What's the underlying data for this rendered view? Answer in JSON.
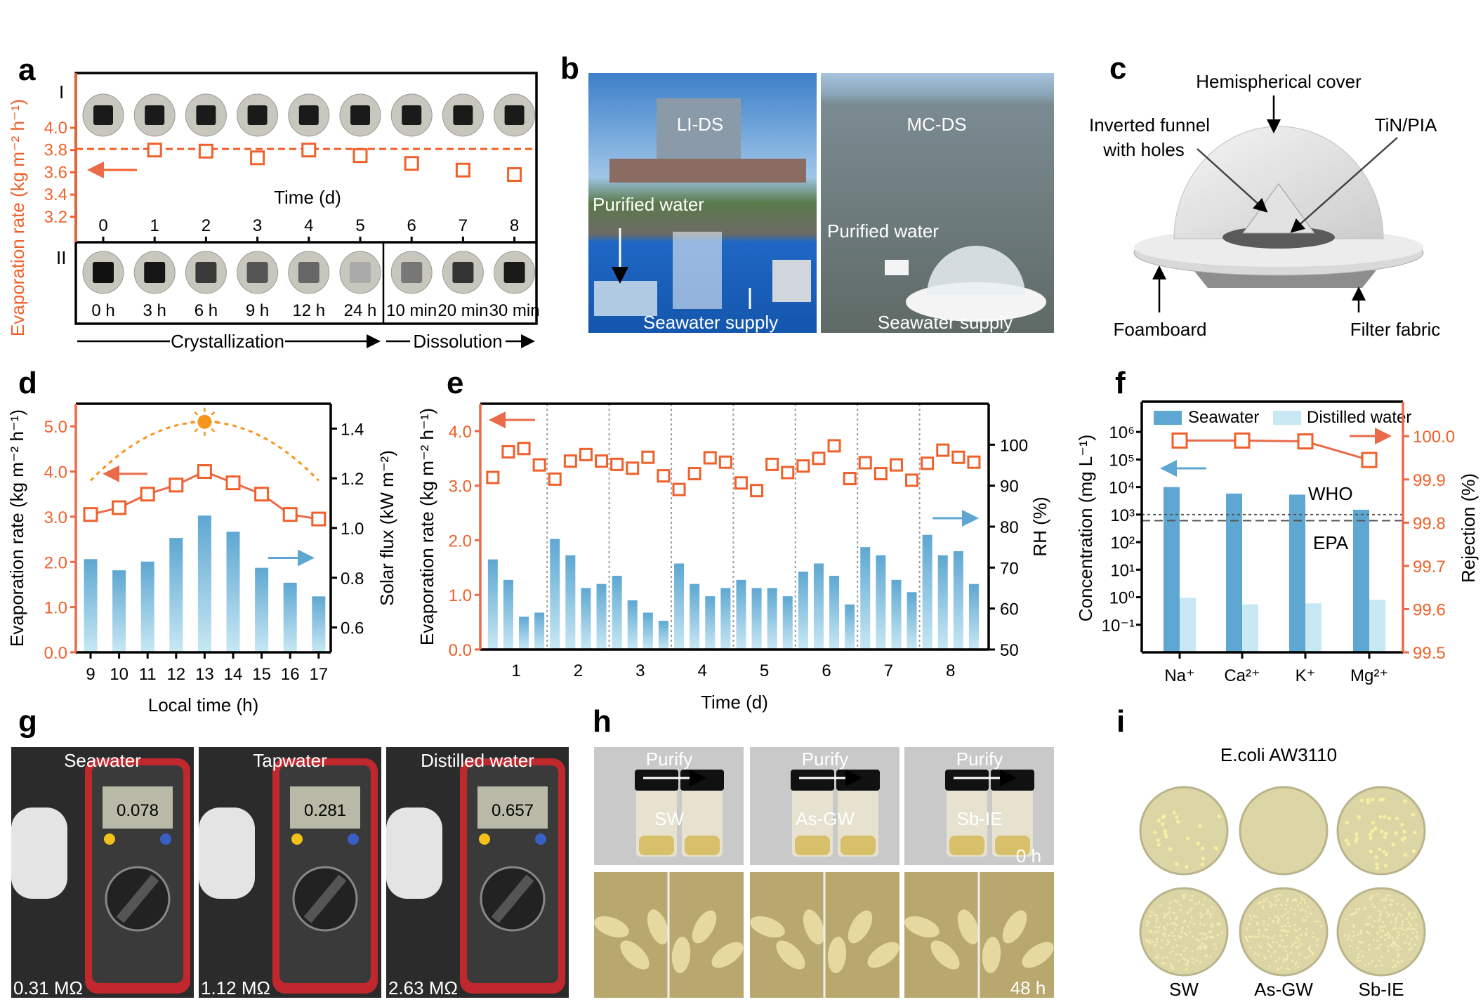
{
  "panel_letters": {
    "a": "a",
    "b": "b",
    "c": "c",
    "d": "d",
    "e": "e",
    "f": "f",
    "g": "g",
    "h": "h",
    "i": "i"
  },
  "colors": {
    "orange": "#f0602a",
    "blue": "#5ea7d2",
    "light_blue": "#c8e8f4",
    "sun": "#f7941d"
  },
  "panel_a": {
    "row_labels": [
      "I",
      "II"
    ],
    "xlabel": "Time (d)",
    "ylabel": "Evaporation rate (kg m⁻² h⁻¹)",
    "day_ticks": [
      "0",
      "1",
      "2",
      "3",
      "4",
      "5",
      "6",
      "7",
      "8"
    ],
    "y_ticks": [
      "3.2",
      "3.4",
      "3.6",
      "3.8",
      "4.0"
    ],
    "times_II": [
      "0 h",
      "3 h",
      "6 h",
      "9 h",
      "12 h",
      "24 h",
      "10 min",
      "20 min",
      "30 min"
    ],
    "phase_crystallization": "Crystallization",
    "phase_dissolution": "Dissolution"
  },
  "panel_b": {
    "left": {
      "title": "LI-DS",
      "purified": "Purified water",
      "supply": "Seawater supply"
    },
    "right": {
      "title": "MC-DS",
      "purified": "Purified water",
      "supply": "Seawater supply"
    }
  },
  "panel_c": {
    "hemispherical_cover": "Hemispherical cover",
    "funnel_line1": "Inverted funnel",
    "funnel_line2": "with holes",
    "tin_pia": "TiN/PIA",
    "foamboard": "Foamboard",
    "filter_fabric": "Filter fabric"
  },
  "panel_g": {
    "photos": [
      {
        "title": "Seawater",
        "resistance": "0.31 MΩ",
        "display": "0.078"
      },
      {
        "title": "Tapwater",
        "resistance": "1.12 MΩ",
        "display": "0.281"
      },
      {
        "title": "Distilled water",
        "resistance": "2.63 MΩ",
        "display": "0.657"
      }
    ]
  },
  "panel_h": {
    "purify": "Purify",
    "samples": [
      "SW",
      "As-GW",
      "Sb-IE"
    ],
    "time_top": "0 h",
    "time_bottom": "48 h"
  },
  "panel_i": {
    "title": "E.coli AW3110",
    "samples": [
      "SW",
      "As-GW",
      "Sb-IE"
    ]
  },
  "chart_data": [
    {
      "id": "a",
      "type": "scatter",
      "title": "",
      "xlabel": "Time (d)",
      "ylabel": "Evaporation rate (kg m⁻² h⁻¹)",
      "x": [
        1,
        2,
        3,
        4,
        5,
        6,
        7,
        8
      ],
      "y": [
        3.8,
        3.79,
        3.73,
        3.8,
        3.75,
        3.68,
        3.62,
        3.58
      ],
      "reference_line": 3.81,
      "xlim": [
        0,
        8
      ],
      "ylim": [
        3.0,
        4.5
      ]
    },
    {
      "id": "d",
      "type": "bar",
      "xlabel": "Local time (h)",
      "categories": [
        "9",
        "10",
        "11",
        "12",
        "13",
        "14",
        "15",
        "16",
        "17"
      ],
      "ylabel_left": "Evaporation rate (kg m⁻² h⁻¹)",
      "ylabel_right": "Solar flux (kW m⁻²)",
      "y_left_ticks": [
        "0.0",
        "1.0",
        "2.0",
        "3.0",
        "4.0",
        "5.0"
      ],
      "y_right_ticks": [
        "0.6",
        "0.8",
        "1.0",
        "1.2",
        "1.4"
      ],
      "ylim_left": [
        0,
        5.5
      ],
      "ylim_right": [
        0.5,
        1.5
      ],
      "series": [
        {
          "name": "Evaporation rate",
          "axis": "left",
          "kind": "line",
          "values": [
            3.05,
            3.2,
            3.5,
            3.7,
            4.0,
            3.75,
            3.5,
            3.05,
            2.95
          ]
        },
        {
          "name": "Solar flux",
          "axis": "right",
          "kind": "bar",
          "values": [
            0.875,
            0.83,
            0.865,
            0.96,
            1.05,
            0.985,
            0.84,
            0.78,
            0.725
          ]
        }
      ]
    },
    {
      "id": "e",
      "type": "bar",
      "xlabel": "Time (d)",
      "categories": [
        "1",
        "2",
        "3",
        "4",
        "5",
        "6",
        "7",
        "8"
      ],
      "ylabel_left": "Evaporation rate (kg m⁻² h⁻¹)",
      "ylabel_right": "RH (%)",
      "y_left_ticks": [
        "0.0",
        "1.0",
        "2.0",
        "3.0",
        "4.0"
      ],
      "y_right_ticks": [
        "50",
        "60",
        "70",
        "80",
        "90",
        "100"
      ],
      "ylim_left": [
        0,
        4.5
      ],
      "ylim_right": [
        50,
        110
      ],
      "series": [
        {
          "name": "Evaporation rate",
          "axis": "left",
          "kind": "scatter",
          "values": [
            [
              3.15,
              3.62,
              3.68,
              3.38
            ],
            [
              3.12,
              3.45,
              3.57,
              3.45
            ],
            [
              3.39,
              3.32,
              3.52,
              3.18
            ],
            [
              2.93,
              3.22,
              3.51,
              3.43
            ],
            [
              3.05,
              2.91,
              3.39,
              3.24
            ],
            [
              3.36,
              3.5,
              3.73,
              3.13
            ],
            [
              3.42,
              3.22,
              3.38,
              3.1
            ],
            [
              3.41,
              3.65,
              3.52,
              3.43
            ]
          ]
        },
        {
          "name": "RH",
          "axis": "right",
          "kind": "bar",
          "values": [
            [
              72,
              67,
              58,
              59
            ],
            [
              77,
              73,
              65,
              66
            ],
            [
              68,
              62,
              59,
              57
            ],
            [
              71,
              66,
              63,
              65
            ],
            [
              67,
              65,
              65,
              63
            ],
            [
              69,
              71,
              68,
              61
            ],
            [
              75,
              73,
              67,
              64
            ],
            [
              78,
              73,
              74,
              66
            ]
          ]
        }
      ]
    },
    {
      "id": "f",
      "type": "bar",
      "categories": [
        "Na⁺",
        "Ca²⁺",
        "K⁺",
        "Mg²⁺"
      ],
      "ylabel_left": "Concentration (mg L⁻¹)",
      "ylabel_right": "Rejection (%)",
      "y_left_scale": "log",
      "y_left_ticks": [
        {
          "exp": -1,
          "label": "10⁻¹"
        },
        {
          "exp": 0,
          "label": "10⁰"
        },
        {
          "exp": 1,
          "label": "10¹"
        },
        {
          "exp": 2,
          "label": "10²"
        },
        {
          "exp": 3,
          "label": "10³"
        },
        {
          "exp": 4,
          "label": "10⁴"
        },
        {
          "exp": 5,
          "label": "10⁵"
        },
        {
          "exp": 6,
          "label": "10⁶"
        }
      ],
      "y_right_ticks": [
        "99.5",
        "99.6",
        "99.7",
        "99.8",
        "99.9",
        "100.0"
      ],
      "ylim_left_log10": [
        -2,
        7.1
      ],
      "ylim_right": [
        99.5,
        100.08
      ],
      "legend": [
        "Seawater",
        "Distilled water"
      ],
      "legend_position": "top",
      "series": [
        {
          "name": "Seawater",
          "axis": "left",
          "kind": "bar",
          "values": [
            10000,
            5800,
            5300,
            1500
          ]
        },
        {
          "name": "Distilled water",
          "axis": "left",
          "kind": "bar",
          "values": [
            0.95,
            0.55,
            0.6,
            0.8
          ]
        },
        {
          "name": "Rejection",
          "axis": "right",
          "kind": "line",
          "values": [
            99.99,
            99.99,
            99.988,
            99.945
          ]
        }
      ],
      "reference_lines": [
        {
          "label": "WHO",
          "value": 1000
        },
        {
          "label": "EPA",
          "value": 600
        }
      ]
    }
  ]
}
